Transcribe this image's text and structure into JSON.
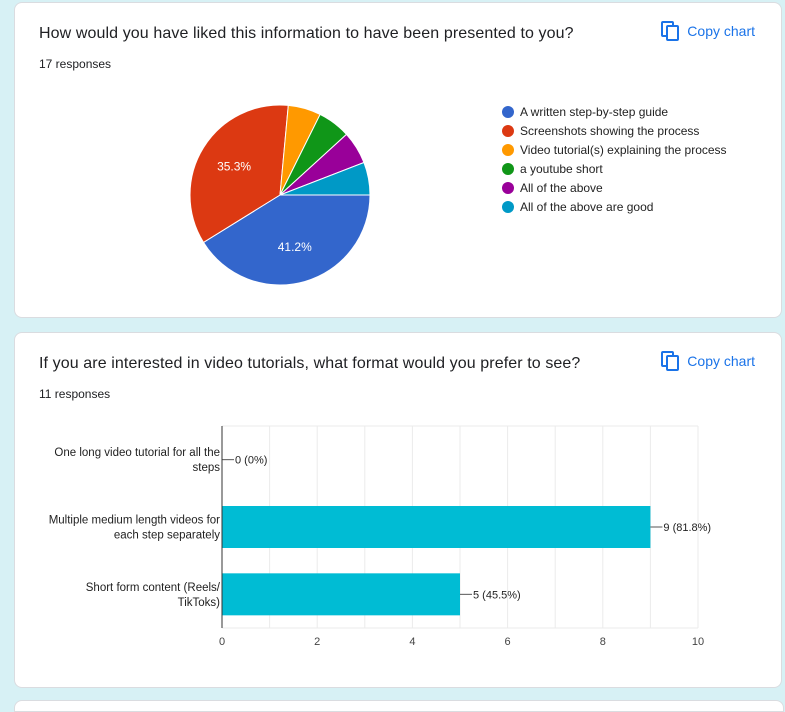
{
  "colors": {
    "background": "#d7f1f5",
    "accent": "#1a73e8",
    "bar": "#00bcd4"
  },
  "card1": {
    "title": "How would you have liked this information to have been presented to you?",
    "responses": "17 responses",
    "copy_label": "Copy chart",
    "copy_icon": "copy-icon"
  },
  "card2": {
    "title": "If you are interested in video tutorials, what format would you prefer to see?",
    "responses": "11 responses",
    "copy_label": "Copy chart",
    "copy_icon": "copy-icon"
  },
  "chart_data": [
    {
      "type": "pie",
      "slices": [
        {
          "label": "A written step-by-step guide",
          "value": 7,
          "percent_label": "41.2%",
          "color": "#3366cc"
        },
        {
          "label": "Screenshots showing the process",
          "value": 6,
          "percent_label": "35.3%",
          "color": "#dc3912"
        },
        {
          "label": "Video tutorial(s) explaining the process",
          "value": 1,
          "percent_label": "",
          "color": "#ff9900"
        },
        {
          "label": "a youtube short",
          "value": 1,
          "percent_label": "",
          "color": "#109618"
        },
        {
          "label": "All of the above",
          "value": 1,
          "percent_label": "",
          "color": "#990099"
        },
        {
          "label": "All of the above are good",
          "value": 1,
          "percent_label": "",
          "color": "#0099c6"
        }
      ],
      "legend_position": "right"
    },
    {
      "type": "bar",
      "orientation": "horizontal",
      "categories": [
        [
          "One long video tutorial for all the",
          "steps"
        ],
        [
          "Multiple medium length videos for",
          "each step separately"
        ],
        [
          "Short form content (Reels/",
          "TikToks)"
        ]
      ],
      "values": [
        0,
        9,
        5
      ],
      "value_labels": [
        "0 (0%)",
        "9 (81.8%)",
        "5 (45.5%)"
      ],
      "xlim": [
        0,
        10
      ],
      "ticks": [
        "0",
        "2",
        "4",
        "6",
        "8",
        "10"
      ],
      "grid": true,
      "color": "#00bcd4"
    }
  ]
}
